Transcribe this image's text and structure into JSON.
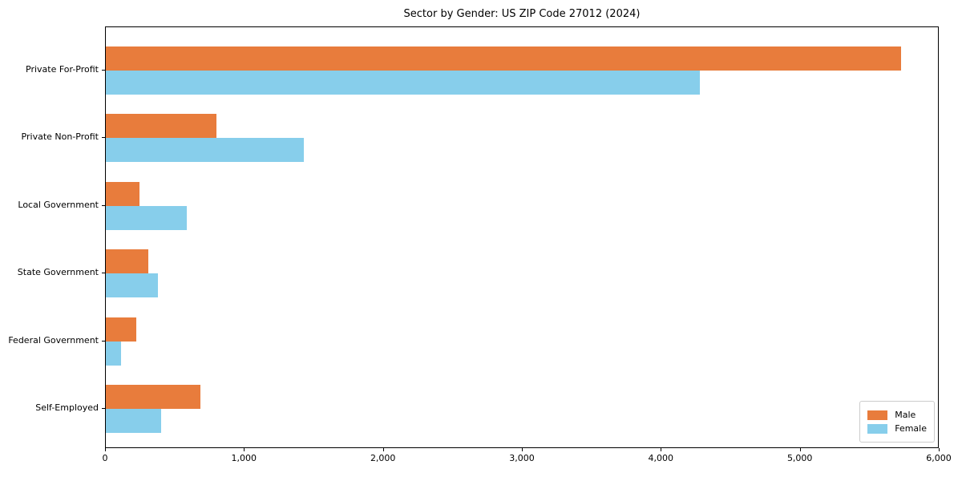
{
  "chart_data": {
    "type": "bar",
    "orientation": "horizontal",
    "title": "Sector by Gender: US ZIP Code 27012 (2024)",
    "categories": [
      "Private For-Profit",
      "Private Non-Profit",
      "Local Government",
      "State Government",
      "Federal Government",
      "Self-Employed"
    ],
    "series": [
      {
        "name": "Male",
        "color": "#E87C3C",
        "values": [
          5725,
          795,
          240,
          305,
          220,
          680
        ]
      },
      {
        "name": "Female",
        "color": "#87CEEB",
        "values": [
          4275,
          1425,
          585,
          375,
          110,
          400
        ]
      }
    ],
    "xlabel": "",
    "ylabel": "",
    "xlim": [
      0,
      6000
    ],
    "xticks": [
      0,
      1000,
      2000,
      3000,
      4000,
      5000,
      6000
    ],
    "xtick_labels": [
      "0",
      "1,000",
      "2,000",
      "3,000",
      "4,000",
      "5,000",
      "6,000"
    ],
    "grid": false,
    "legend_position": "lower right",
    "axis_color": "#000000",
    "background_color": "#ffffff"
  }
}
